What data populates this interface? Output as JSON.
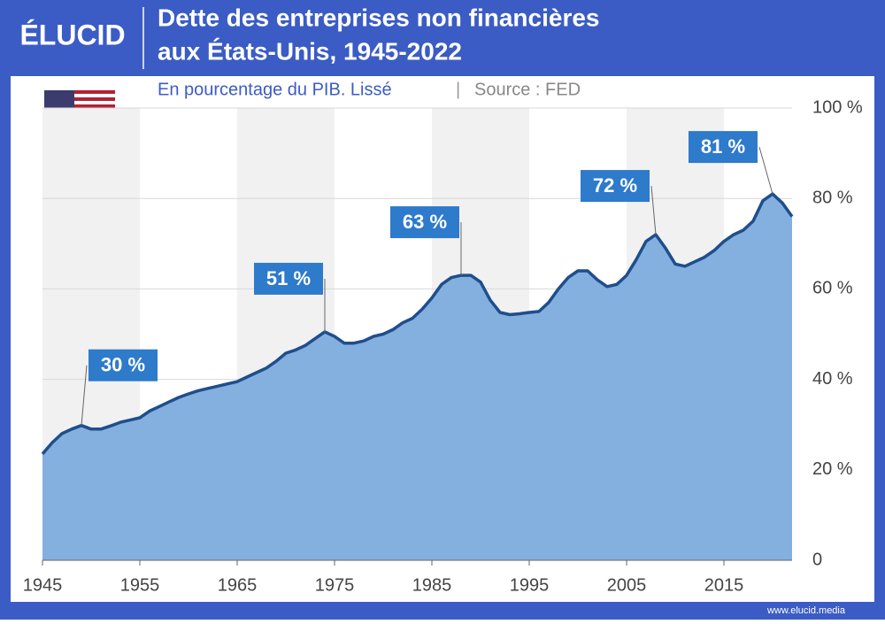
{
  "brand": "ÉLUCID",
  "footer": "www.elucid.media",
  "chart_data": {
    "type": "area",
    "title": [
      "Dette des entreprises non financières",
      "aux États-Unis, 1945-2022"
    ],
    "subtitle": "En pourcentage du PIB. Lissé",
    "source": "Source : FED",
    "x": [
      1945,
      1946,
      1947,
      1948,
      1949,
      1950,
      1951,
      1952,
      1953,
      1954,
      1955,
      1956,
      1957,
      1958,
      1959,
      1960,
      1961,
      1962,
      1963,
      1964,
      1965,
      1966,
      1967,
      1968,
      1969,
      1970,
      1971,
      1972,
      1973,
      1974,
      1975,
      1976,
      1977,
      1978,
      1979,
      1980,
      1981,
      1982,
      1983,
      1984,
      1985,
      1986,
      1987,
      1988,
      1989,
      1990,
      1991,
      1992,
      1993,
      1994,
      1995,
      1996,
      1997,
      1998,
      1999,
      2000,
      2001,
      2002,
      2003,
      2004,
      2005,
      2006,
      2007,
      2008,
      2009,
      2010,
      2011,
      2012,
      2013,
      2014,
      2015,
      2016,
      2017,
      2018,
      2019,
      2020,
      2021,
      2022
    ],
    "series": [
      {
        "name": "Dette des entreprises non financières",
        "color": "#1f4e8c",
        "fill": "#84b0e0",
        "values": [
          23.5,
          26,
          28,
          29,
          29.8,
          29,
          29,
          29.7,
          30.5,
          31,
          31.5,
          33,
          34,
          35,
          36,
          36.8,
          37.5,
          38,
          38.5,
          39,
          39.5,
          40.5,
          41.5,
          42.5,
          44,
          45.8,
          46.5,
          47.5,
          49,
          50.5,
          49.5,
          48,
          48,
          48.5,
          49.5,
          50,
          51,
          52.5,
          53.5,
          55.5,
          58,
          61,
          62.5,
          63,
          63,
          61.5,
          57.5,
          54.8,
          54.3,
          54.5,
          54.8,
          55,
          57,
          60,
          62.5,
          64,
          64,
          62,
          60.5,
          61,
          63,
          66.5,
          70.5,
          72,
          69,
          65.5,
          65,
          66,
          67,
          68.5,
          70.5,
          72,
          73,
          75,
          79.5,
          81,
          79,
          76
        ]
      }
    ],
    "annotations": [
      {
        "x": 1949,
        "label": "30 %"
      },
      {
        "x": 1974,
        "label": "51 %"
      },
      {
        "x": 1988,
        "label": "63 %"
      },
      {
        "x": 2008,
        "label": "72 %"
      },
      {
        "x": 2020,
        "label": "81 %"
      }
    ],
    "xlim": [
      1945,
      2022
    ],
    "xticks": [
      1945,
      1955,
      1965,
      1975,
      1985,
      1995,
      2005,
      2015
    ],
    "ylim": [
      0,
      100
    ],
    "yticks": [
      {
        "value": 0,
        "label": "0"
      },
      {
        "value": 20,
        "label": "20 %"
      },
      {
        "value": 40,
        "label": "40 %"
      },
      {
        "value": 60,
        "label": "60 %"
      },
      {
        "value": 80,
        "label": "80 %"
      },
      {
        "value": 100,
        "label": "100 %"
      }
    ],
    "grid": true
  }
}
